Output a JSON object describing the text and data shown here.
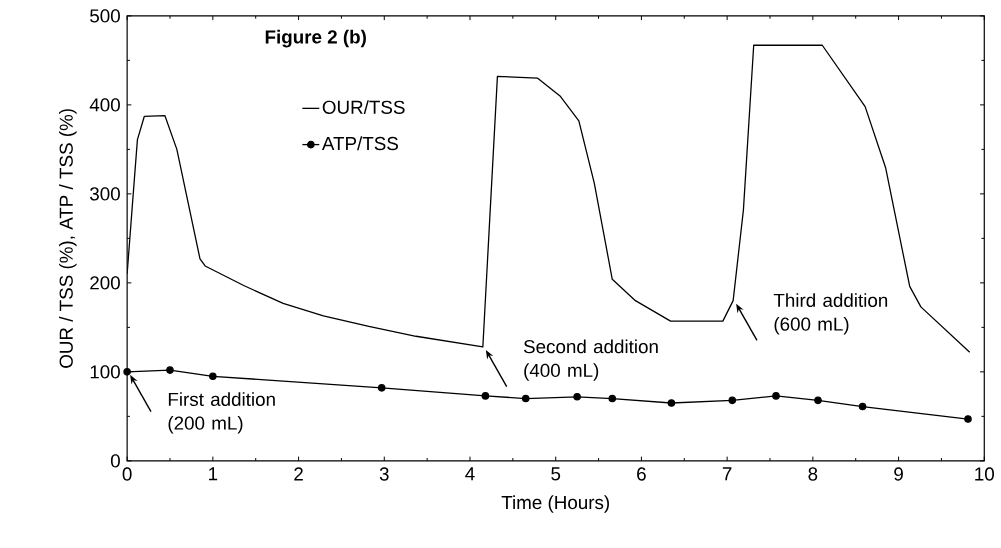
{
  "chart_data": {
    "type": "line",
    "title": "Figure 2 (b)",
    "xlabel": "Time (Hours)",
    "ylabel": "OUR / TSS (%), ATP / TSS (%)",
    "xlim": [
      0,
      10
    ],
    "ylim": [
      0,
      500
    ],
    "xticks": [
      0,
      1,
      2,
      3,
      4,
      5,
      6,
      7,
      8,
      9,
      10
    ],
    "yticks": [
      0,
      100,
      200,
      300,
      400,
      500
    ],
    "legend": "top left",
    "series": [
      {
        "name": "OUR/TSS",
        "color": "#000000",
        "marker": "none",
        "x": [
          0,
          0.06,
          0.12,
          0.2,
          0.44,
          0.58,
          0.85,
          0.91,
          1.36,
          1.82,
          2.29,
          2.82,
          3.37,
          4.15,
          4.32,
          4.79,
          5.05,
          5.27,
          5.45,
          5.66,
          5.93,
          6.34,
          6.95,
          7.07,
          7.19,
          7.31,
          8.11,
          8.61,
          8.85,
          9.13,
          9.26,
          9.83
        ],
        "values": [
          210,
          286,
          361,
          387,
          388,
          350,
          227,
          219,
          197,
          177,
          163,
          151,
          140,
          128,
          432,
          430,
          410,
          382,
          312,
          204,
          180,
          157,
          157,
          180,
          282,
          467,
          467,
          398,
          329,
          196,
          173,
          122
        ]
      },
      {
        "name": "ATP/TSS",
        "color": "#000000",
        "marker": "circle",
        "x": [
          0,
          0.5,
          1.0,
          2.97,
          4.18,
          4.65,
          5.25,
          5.66,
          6.35,
          7.06,
          7.57,
          8.06,
          8.58,
          9.81
        ],
        "values": [
          100,
          102,
          95,
          82,
          73,
          70,
          72,
          70,
          65,
          68,
          73,
          68,
          61,
          47
        ]
      }
    ],
    "annotations": [
      {
        "text": "First addition (200 mL)",
        "x": 0,
        "y": 100
      },
      {
        "text": "Second addition (400 mL)",
        "x": 4.15,
        "y": 128
      },
      {
        "text": "Third addition (600 mL)",
        "x": 7.07,
        "y": 180
      }
    ]
  }
}
